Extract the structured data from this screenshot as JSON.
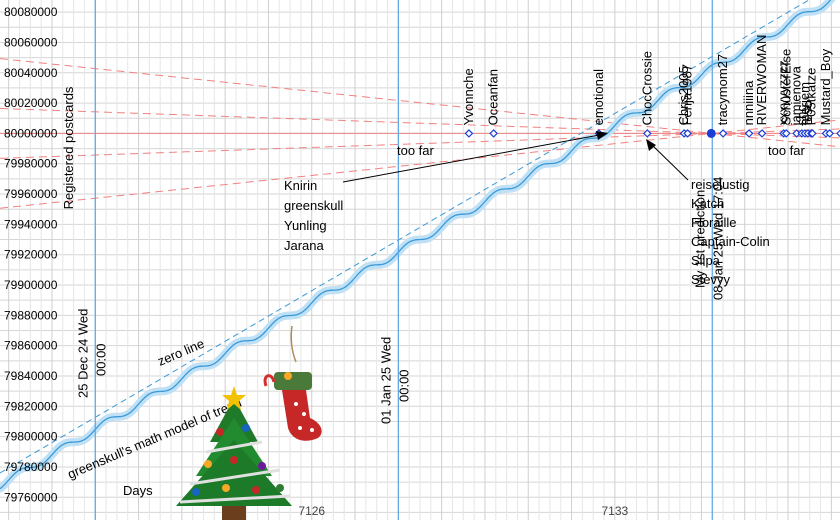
{
  "chart_data": {
    "type": "line",
    "title": "",
    "xlabel": "Days",
    "ylabel": "Registered postcards",
    "xlim": [
      7118.8,
      7138.2
    ],
    "ylim": [
      79745000,
      80088000
    ],
    "y_ticks": [
      79760000,
      79780000,
      79800000,
      79820000,
      79840000,
      79860000,
      79880000,
      79900000,
      79920000,
      79940000,
      79960000,
      79980000,
      80000000,
      80020000,
      80040000,
      80060000,
      80080000
    ],
    "x_ticks": [
      7126,
      7133
    ],
    "x_tick_labels": [
      "7126",
      "7133"
    ],
    "grid": true,
    "target_value": 80000000,
    "date_markers": [
      {
        "x": 7121,
        "label_line1": "25 Dec 24 Wed",
        "label_line2": "00:00"
      },
      {
        "x": 7128,
        "label_line1": "01 Jan 25 Wed",
        "label_line2": "00:00"
      },
      {
        "x": 7135.25,
        "label_line1": "My 1st prediction",
        "label_line2": "08 Jan 25 Wed 17:04"
      }
    ],
    "series": [
      {
        "name": "greenskull's math model of trend",
        "x_start": 7118.8,
        "x_end": 7138.2,
        "y_start": 79768000,
        "y_end": 80092000,
        "wave_amplitude": 2500,
        "wave_period_days": 1,
        "color": "#3a9ad9"
      },
      {
        "name": "zero line",
        "x_start": 7118.8,
        "x_end": 7138.2,
        "y_start": 79776000,
        "y_end": 80100000,
        "color": "#3a9ad9"
      }
    ],
    "too_far_bounds": {
      "x0": 7135.25,
      "y0": 80000000,
      "outer_slope": 3000,
      "inner_slope": 1000,
      "color": "#f08080"
    },
    "guesses": [
      {
        "x": 7129.63,
        "label": "Yvonnche"
      },
      {
        "x": 7130.2,
        "label": "Oceanfan"
      },
      {
        "x": 7132.63,
        "label": "emotional"
      },
      {
        "x": 7133.75,
        "label": "ChocCrossie"
      },
      {
        "x": 7134.6,
        "label": "Chris2005"
      },
      {
        "x": 7134.68,
        "label": "Fenja1987"
      },
      {
        "x": 7135.5,
        "label": "tracymom27"
      },
      {
        "x": 7136.1,
        "label": "nnniiina"
      },
      {
        "x": 7136.4,
        "label": "RIVERWOMAN"
      },
      {
        "x": 7138.9,
        "label": "xxxyyyzzzz"
      },
      {
        "x": 7139.2,
        "label": "SchusterElse"
      },
      {
        "x": 7140.4,
        "label": "jamienova"
      },
      {
        "x": 7141.0,
        "label": "shc"
      },
      {
        "x": 7141.35,
        "label": "merjem"
      },
      {
        "x": 7141.7,
        "label": "tesc"
      },
      {
        "x": 7142.1,
        "label": "P05tkatze"
      },
      {
        "x": 7143.8,
        "label": "Mustard_Boy"
      }
    ],
    "cluster_dots_x": [
      7137.1,
      7137.5,
      7137.75,
      7137.95,
      7138.15,
      7138.35
    ],
    "annotations": {
      "too_far": "too far",
      "left_group": [
        "Knirin",
        "greenskull",
        "Yunling",
        "Jarana"
      ],
      "right_group": [
        "reiselustig",
        "Katch",
        "Floraille",
        "Captain-Colin",
        "Silpa",
        "Stevyy"
      ]
    }
  }
}
